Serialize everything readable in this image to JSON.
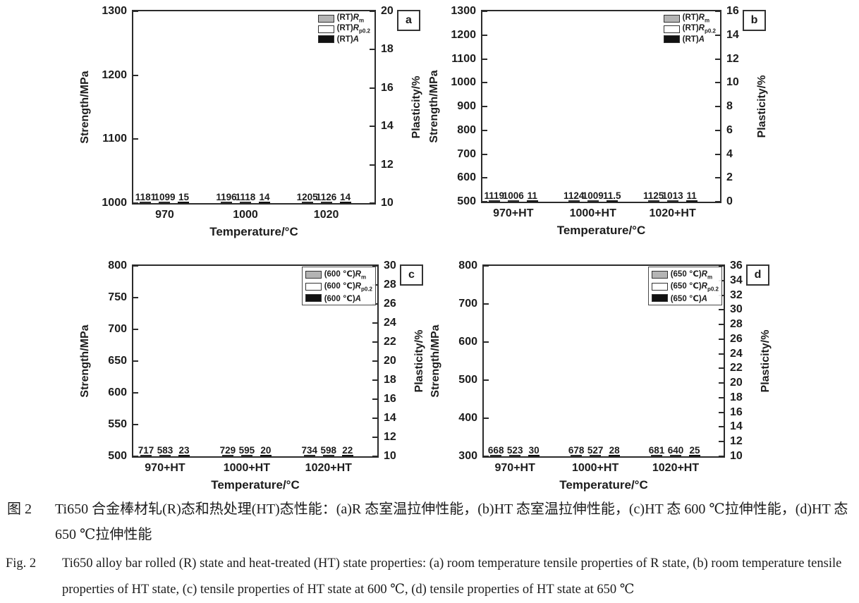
{
  "colors": {
    "gray": "#b4b4b4",
    "white": "#ffffff",
    "black": "#111111",
    "axis": "#2b2b2b"
  },
  "chart_data": [
    {
      "type": "bar",
      "panel": "a",
      "xlabel": "Temperature/°C",
      "categories": [
        "970",
        "1000",
        "1020"
      ],
      "left_axis": {
        "label": "Strength/MPa",
        "min": 1000,
        "max": 1300,
        "step": 100
      },
      "right_axis": {
        "label": "Plasticity/%",
        "min": 10,
        "max": 20,
        "step": 2
      },
      "legend_box": false,
      "legend_position": "top-right",
      "grid": false,
      "series": [
        {
          "name": "(RT)Rm",
          "legend": {
            "pre": "(RT)",
            "sym": "R",
            "sub": "m"
          },
          "fill": "gray",
          "axis": "left",
          "values": [
            1181,
            1196,
            1205
          ]
        },
        {
          "name": "(RT)Rp0.2",
          "legend": {
            "pre": "(RT)",
            "sym": "R",
            "sub": "p0.2"
          },
          "fill": "white",
          "axis": "left",
          "values": [
            1099,
            1118,
            1126
          ]
        },
        {
          "name": "(RT)A",
          "legend": {
            "pre": "(RT)",
            "sym": "A",
            "sub": ""
          },
          "fill": "black",
          "axis": "right",
          "values": [
            15,
            14,
            14
          ]
        }
      ]
    },
    {
      "type": "bar",
      "panel": "b",
      "xlabel": "Temperature/°C",
      "categories": [
        "970+HT",
        "1000+HT",
        "1020+HT"
      ],
      "left_axis": {
        "label": "Strength/MPa",
        "min": 500,
        "max": 1300,
        "step": 100
      },
      "right_axis": {
        "label": "Plasticity/%",
        "min": 0,
        "max": 16,
        "step": 2
      },
      "legend_box": false,
      "legend_position": "top-right",
      "grid": false,
      "series": [
        {
          "name": "(RT)Rm",
          "legend": {
            "pre": "(RT)",
            "sym": "R",
            "sub": "m"
          },
          "fill": "gray",
          "axis": "left",
          "values": [
            1119,
            1124,
            1125
          ]
        },
        {
          "name": "(RT)Rp0.2",
          "legend": {
            "pre": "(RT)",
            "sym": "R",
            "sub": "p0.2"
          },
          "fill": "white",
          "axis": "left",
          "values": [
            1006,
            1009,
            1013
          ]
        },
        {
          "name": "(RT)A",
          "legend": {
            "pre": "(RT)",
            "sym": "A",
            "sub": ""
          },
          "fill": "black",
          "axis": "right",
          "values": [
            11,
            11.5,
            11
          ]
        }
      ]
    },
    {
      "type": "bar",
      "panel": "c",
      "xlabel": "Temperature/°C",
      "categories": [
        "970+HT",
        "1000+HT",
        "1020+HT"
      ],
      "left_axis": {
        "label": "Strength/MPa",
        "min": 500,
        "max": 800,
        "step": 50
      },
      "right_axis": {
        "label": "Plasticity/%",
        "min": 10,
        "max": 30,
        "step": 2
      },
      "legend_box": true,
      "legend_position": "top-right",
      "grid": false,
      "series": [
        {
          "name": "(600 ℃)Rm",
          "legend": {
            "pre": "(600 ℃)",
            "sym": "R",
            "sub": "m"
          },
          "fill": "gray",
          "axis": "left",
          "values": [
            717,
            729,
            734
          ]
        },
        {
          "name": "(600 ℃)Rp0.2",
          "legend": {
            "pre": "(600 ℃)",
            "sym": "R",
            "sub": "p0.2"
          },
          "fill": "white",
          "axis": "left",
          "values": [
            583,
            595,
            598
          ]
        },
        {
          "name": "(600 ℃)A",
          "legend": {
            "pre": "(600 ℃)",
            "sym": "A",
            "sub": ""
          },
          "fill": "black",
          "axis": "right",
          "values": [
            23,
            20,
            22
          ]
        }
      ]
    },
    {
      "type": "bar",
      "panel": "d",
      "xlabel": "Temperature/°C",
      "categories": [
        "970+HT",
        "1000+HT",
        "1020+HT"
      ],
      "left_axis": {
        "label": "Strength/MPa",
        "min": 300,
        "max": 800,
        "step": 100
      },
      "right_axis": {
        "label": "Plasticity/%",
        "min": 10,
        "max": 36,
        "step": 2
      },
      "legend_box": true,
      "legend_position": "top-right",
      "grid": false,
      "series": [
        {
          "name": "(650 ℃)Rm",
          "legend": {
            "pre": "(650 ℃)",
            "sym": "R",
            "sub": "m"
          },
          "fill": "gray",
          "axis": "left",
          "values": [
            668,
            678,
            681
          ]
        },
        {
          "name": "(650 ℃)Rp0.2",
          "legend": {
            "pre": "(650 ℃)",
            "sym": "R",
            "sub": "p0.2"
          },
          "fill": "white",
          "axis": "left",
          "values": [
            523,
            527,
            640
          ]
        },
        {
          "name": "(650 ℃)A",
          "legend": {
            "pre": "(650 ℃)",
            "sym": "A",
            "sub": ""
          },
          "fill": "black",
          "axis": "right",
          "values": [
            30,
            28,
            25
          ]
        }
      ]
    }
  ],
  "captions": {
    "chinese": {
      "label": "图 2",
      "text": "Ti650 合金棒材轧(R)态和热处理(HT)态性能：(a)R 态室温拉伸性能，(b)HT 态室温拉伸性能，(c)HT 态 600 ℃拉伸性能，(d)HT 态 650 ℃拉伸性能"
    },
    "english": {
      "label": "Fig. 2",
      "text": "Ti650 alloy bar rolled (R) state and heat-treated (HT) state properties: (a) room temperature tensile properties of R state, (b) room temperature tensile properties of HT state, (c) tensile properties of HT state at 600 ℃, (d) tensile properties of HT state at 650 ℃"
    }
  }
}
